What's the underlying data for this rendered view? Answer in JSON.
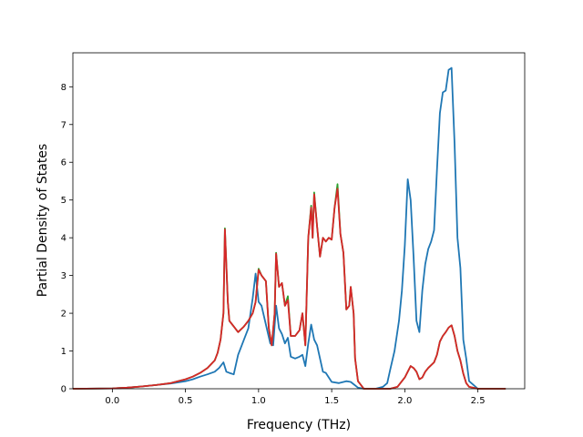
{
  "chart_data": {
    "type": "line",
    "title": "",
    "xlabel": "Frequency (THz)",
    "ylabel": "Partial Density of States",
    "xlim": [
      -0.27,
      2.82
    ],
    "ylim": [
      0,
      8.9
    ],
    "xticks": [
      "0.0",
      "0.5",
      "1.0",
      "1.5",
      "2.0",
      "2.5"
    ],
    "xtick_values": [
      0.0,
      0.5,
      1.0,
      1.5,
      2.0,
      2.5
    ],
    "yticks": [
      "0",
      "1",
      "2",
      "3",
      "4",
      "5",
      "6",
      "7",
      "8"
    ],
    "ytick_values": [
      0,
      1,
      2,
      3,
      4,
      5,
      6,
      7,
      8
    ],
    "grid": false,
    "legend": "none",
    "series": [
      {
        "color": "#1f77b4",
        "x": [
          -0.27,
          0.0,
          0.1,
          0.2,
          0.3,
          0.4,
          0.5,
          0.55,
          0.6,
          0.65,
          0.7,
          0.73,
          0.76,
          0.78,
          0.8,
          0.83,
          0.86,
          0.88,
          0.9,
          0.93,
          0.96,
          0.98,
          1.0,
          1.02,
          1.05,
          1.08,
          1.1,
          1.12,
          1.14,
          1.16,
          1.18,
          1.2,
          1.22,
          1.25,
          1.28,
          1.3,
          1.32,
          1.34,
          1.36,
          1.38,
          1.4,
          1.42,
          1.44,
          1.46,
          1.5,
          1.55,
          1.6,
          1.63,
          1.65,
          1.68,
          1.72,
          1.8,
          1.85,
          1.88,
          1.9,
          1.93,
          1.96,
          1.98,
          2.0,
          2.02,
          2.04,
          2.06,
          2.08,
          2.1,
          2.12,
          2.14,
          2.16,
          2.18,
          2.2,
          2.22,
          2.24,
          2.26,
          2.28,
          2.3,
          2.32,
          2.34,
          2.36,
          2.38,
          2.4,
          2.42,
          2.44,
          2.5,
          2.6,
          2.69
        ],
        "y": [
          0.0,
          0.01,
          0.03,
          0.06,
          0.1,
          0.14,
          0.2,
          0.25,
          0.32,
          0.38,
          0.45,
          0.55,
          0.7,
          0.45,
          0.42,
          0.38,
          0.9,
          1.1,
          1.3,
          1.6,
          2.4,
          3.05,
          2.3,
          2.2,
          1.7,
          1.2,
          1.15,
          2.2,
          1.6,
          1.45,
          1.2,
          1.35,
          0.85,
          0.8,
          0.85,
          0.9,
          0.6,
          1.2,
          1.7,
          1.3,
          1.15,
          0.8,
          0.45,
          0.42,
          0.18,
          0.15,
          0.2,
          0.18,
          0.12,
          0.03,
          0.0,
          0.0,
          0.05,
          0.15,
          0.5,
          1.0,
          1.8,
          2.6,
          3.8,
          5.55,
          5.0,
          3.5,
          1.8,
          1.5,
          2.6,
          3.3,
          3.7,
          3.9,
          4.2,
          5.8,
          7.3,
          7.85,
          7.9,
          8.45,
          8.5,
          6.5,
          4.0,
          3.2,
          1.3,
          0.8,
          0.2,
          0.0,
          0.0,
          0.0
        ]
      },
      {
        "color": "#2ca02c",
        "x": [
          -0.27,
          0.0,
          0.1,
          0.2,
          0.3,
          0.4,
          0.5,
          0.55,
          0.6,
          0.65,
          0.7,
          0.72,
          0.74,
          0.76,
          0.77,
          0.79,
          0.8,
          0.83,
          0.86,
          0.9,
          0.93,
          0.96,
          0.98,
          1.0,
          1.02,
          1.05,
          1.07,
          1.09,
          1.11,
          1.12,
          1.14,
          1.16,
          1.18,
          1.2,
          1.22,
          1.25,
          1.28,
          1.3,
          1.32,
          1.34,
          1.36,
          1.37,
          1.38,
          1.4,
          1.42,
          1.44,
          1.46,
          1.48,
          1.5,
          1.52,
          1.54,
          1.56,
          1.58,
          1.6,
          1.62,
          1.63,
          1.65,
          1.66,
          1.68,
          1.72,
          1.8,
          1.9,
          1.95,
          2.0,
          2.02,
          2.04,
          2.06,
          2.08,
          2.1,
          2.12,
          2.14,
          2.16,
          2.2,
          2.22,
          2.24,
          2.26,
          2.28,
          2.3,
          2.32,
          2.34,
          2.36,
          2.38,
          2.4,
          2.42,
          2.44,
          2.5,
          2.6,
          2.69
        ],
        "y": [
          0.0,
          0.01,
          0.03,
          0.06,
          0.1,
          0.15,
          0.25,
          0.32,
          0.42,
          0.55,
          0.75,
          0.95,
          1.3,
          2.0,
          4.25,
          2.3,
          1.8,
          1.65,
          1.5,
          1.65,
          1.8,
          2.0,
          2.3,
          3.18,
          3.0,
          2.85,
          1.6,
          1.15,
          2.0,
          3.6,
          2.7,
          2.8,
          2.2,
          2.45,
          1.4,
          1.4,
          1.55,
          2.0,
          1.15,
          4.0,
          4.85,
          4.0,
          5.2,
          4.3,
          3.5,
          4.0,
          3.9,
          4.0,
          3.95,
          4.8,
          5.42,
          4.1,
          3.6,
          2.1,
          2.2,
          2.7,
          2.0,
          0.8,
          0.2,
          0.0,
          0.0,
          0.0,
          0.05,
          0.3,
          0.45,
          0.6,
          0.55,
          0.45,
          0.25,
          0.3,
          0.45,
          0.55,
          0.7,
          0.9,
          1.25,
          1.4,
          1.5,
          1.62,
          1.68,
          1.4,
          1.0,
          0.75,
          0.4,
          0.15,
          0.05,
          0.0,
          0.0,
          0.0
        ]
      },
      {
        "color": "#d62728",
        "x": [
          -0.27,
          0.0,
          0.1,
          0.2,
          0.3,
          0.4,
          0.5,
          0.55,
          0.6,
          0.65,
          0.7,
          0.72,
          0.74,
          0.76,
          0.77,
          0.79,
          0.8,
          0.83,
          0.86,
          0.9,
          0.93,
          0.96,
          0.98,
          1.0,
          1.02,
          1.05,
          1.07,
          1.09,
          1.11,
          1.12,
          1.14,
          1.16,
          1.18,
          1.2,
          1.22,
          1.25,
          1.28,
          1.3,
          1.32,
          1.34,
          1.36,
          1.37,
          1.38,
          1.4,
          1.42,
          1.44,
          1.46,
          1.48,
          1.5,
          1.52,
          1.54,
          1.56,
          1.58,
          1.6,
          1.62,
          1.63,
          1.65,
          1.66,
          1.68,
          1.72,
          1.8,
          1.9,
          1.95,
          2.0,
          2.02,
          2.04,
          2.06,
          2.08,
          2.1,
          2.12,
          2.14,
          2.16,
          2.2,
          2.22,
          2.24,
          2.26,
          2.28,
          2.3,
          2.32,
          2.34,
          2.36,
          2.38,
          2.4,
          2.42,
          2.44,
          2.5,
          2.6,
          2.69
        ],
        "y": [
          0.0,
          0.01,
          0.03,
          0.06,
          0.1,
          0.15,
          0.25,
          0.32,
          0.42,
          0.55,
          0.75,
          0.95,
          1.3,
          2.0,
          4.22,
          2.3,
          1.8,
          1.65,
          1.5,
          1.65,
          1.8,
          2.0,
          2.3,
          3.15,
          3.0,
          2.85,
          1.6,
          1.15,
          2.0,
          3.58,
          2.7,
          2.8,
          2.2,
          2.35,
          1.4,
          1.4,
          1.55,
          2.0,
          1.15,
          4.0,
          4.8,
          4.0,
          5.15,
          4.3,
          3.5,
          4.0,
          3.9,
          4.0,
          3.95,
          4.8,
          5.3,
          4.1,
          3.6,
          2.1,
          2.2,
          2.7,
          2.0,
          0.8,
          0.2,
          0.0,
          0.0,
          0.0,
          0.05,
          0.3,
          0.45,
          0.6,
          0.55,
          0.45,
          0.25,
          0.3,
          0.45,
          0.55,
          0.7,
          0.9,
          1.25,
          1.4,
          1.5,
          1.62,
          1.68,
          1.4,
          1.0,
          0.75,
          0.4,
          0.15,
          0.05,
          0.0,
          0.0,
          0.0
        ]
      }
    ]
  }
}
